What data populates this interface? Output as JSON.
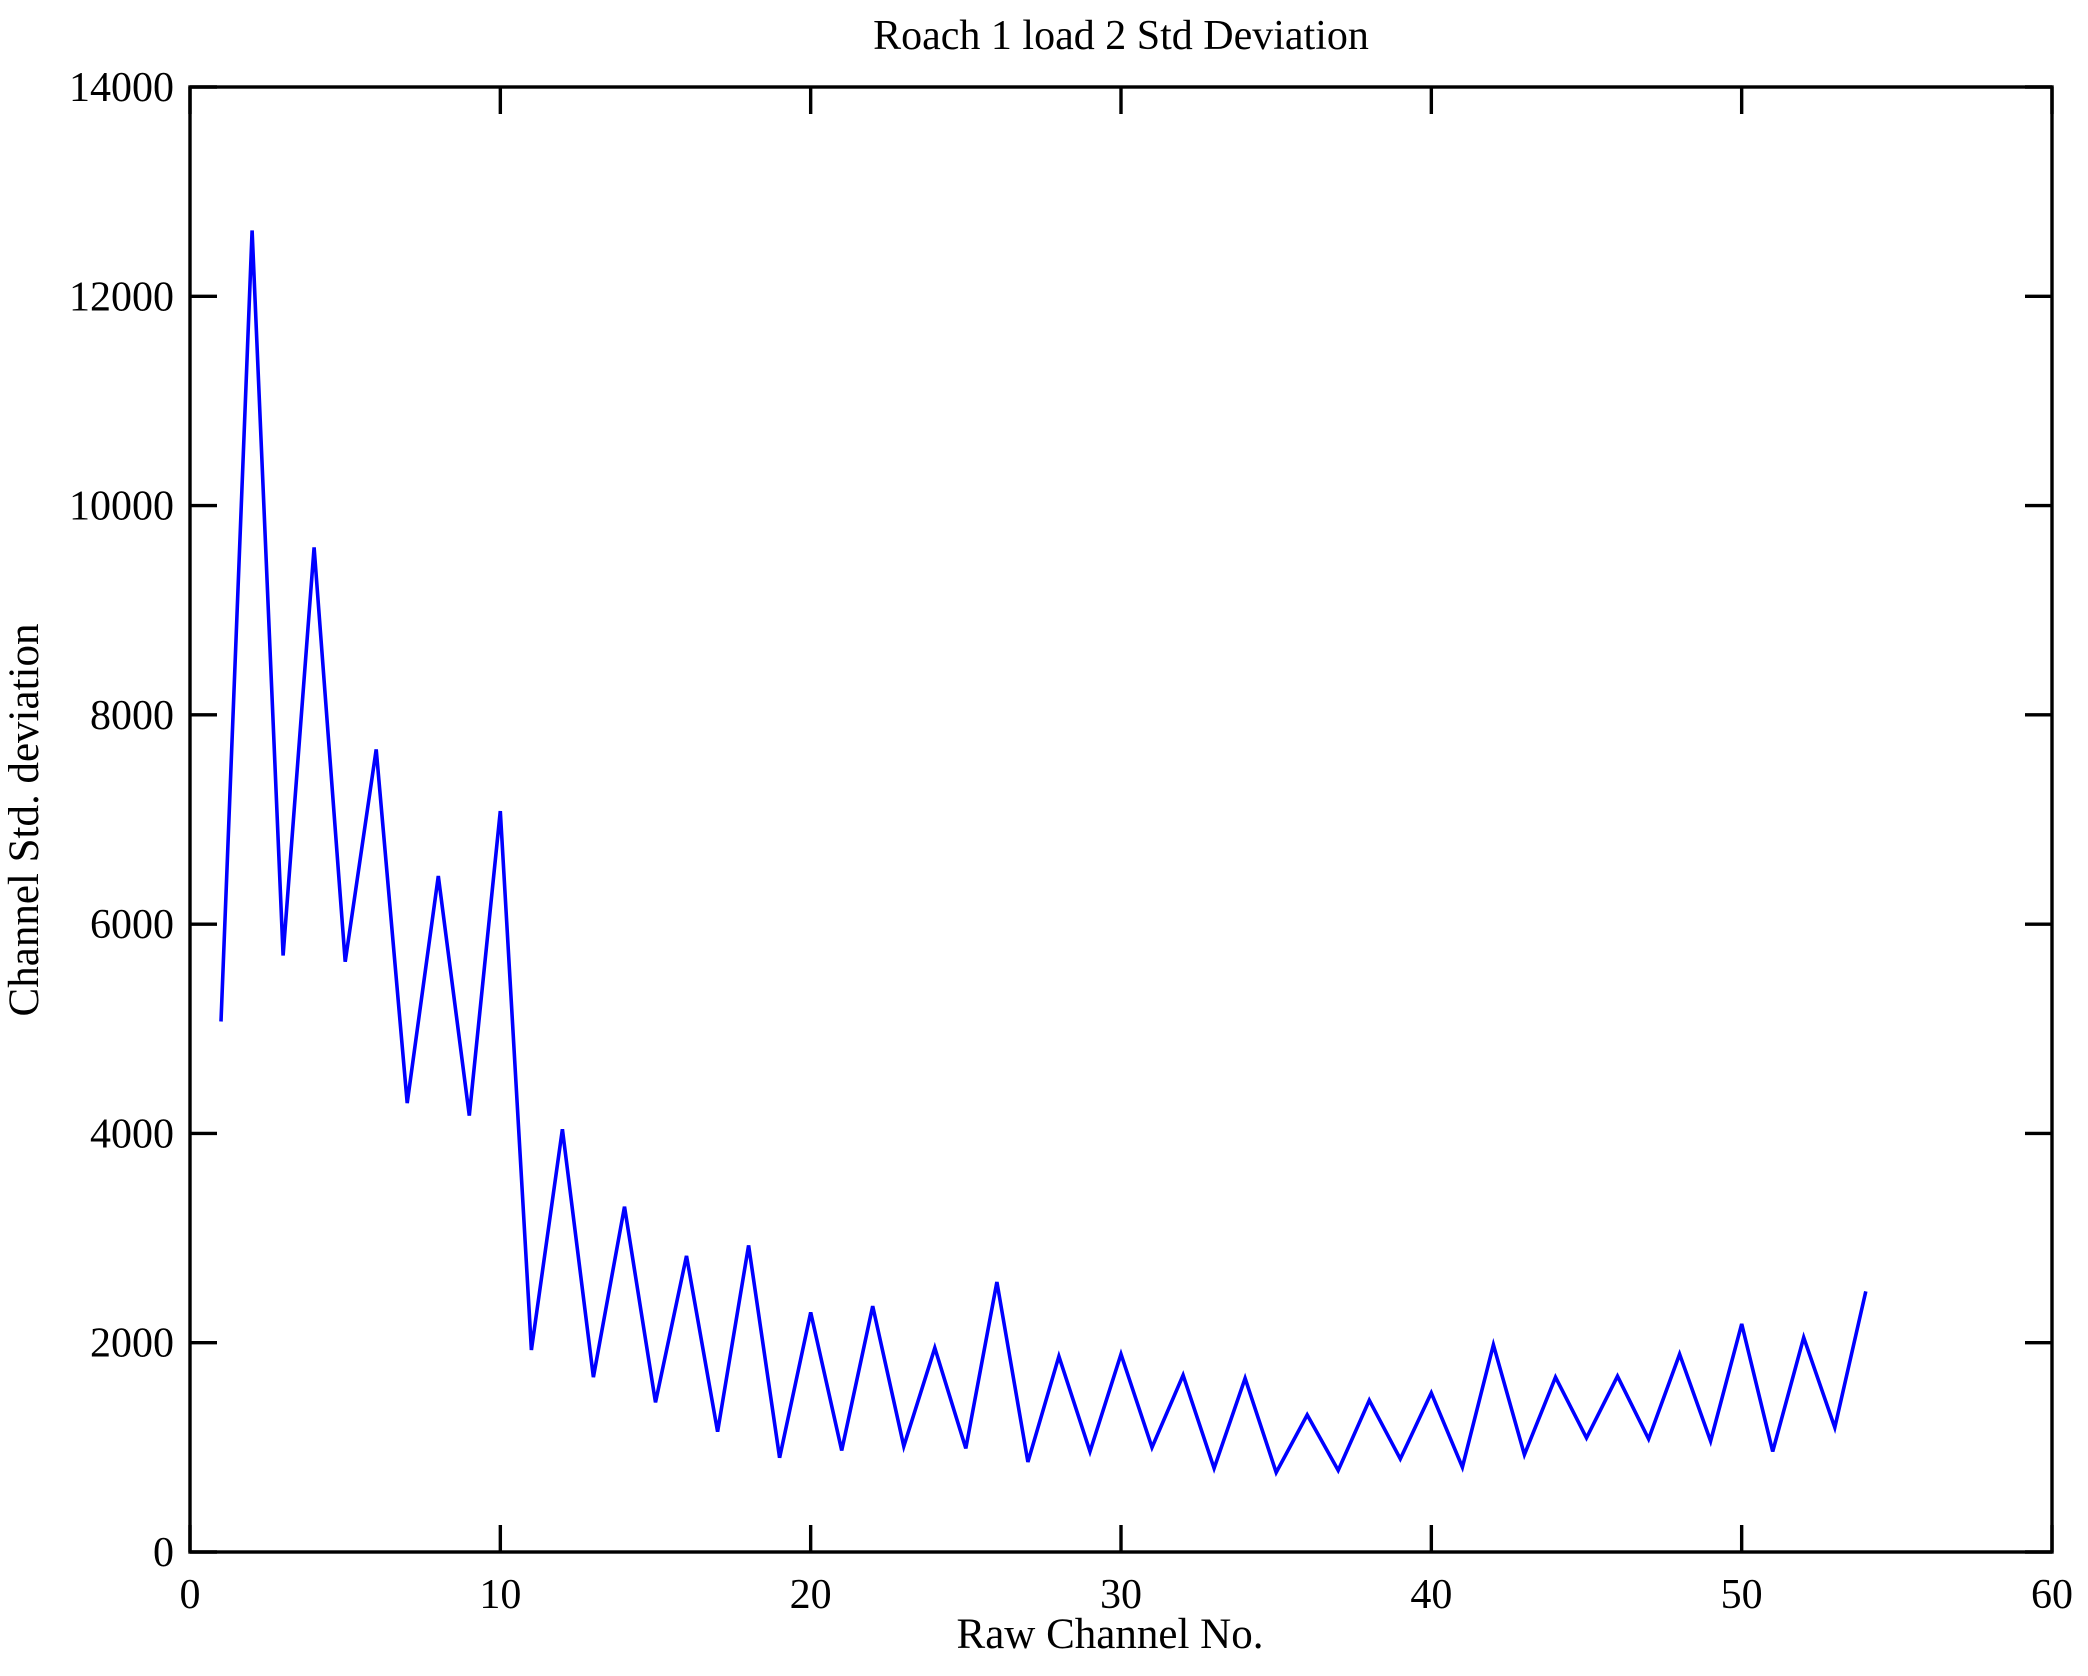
{
  "figure": {
    "background": "#ffffff",
    "axis_color": "#000000"
  },
  "chart_data": {
    "type": "line",
    "title": "Roach 1 load 2 Std Deviation",
    "xlabel": "Raw Channel No.",
    "ylabel": "Channel Std. deviation",
    "xlim": [
      0,
      60
    ],
    "ylim": [
      0,
      14000
    ],
    "xticks": [
      0,
      10,
      20,
      30,
      40,
      50,
      60
    ],
    "yticks": [
      0,
      2000,
      4000,
      6000,
      8000,
      10000,
      12000,
      14000
    ],
    "grid": false,
    "legend_position": "none",
    "line_color": "#0000ff",
    "series_name": "Channel Std. deviation",
    "x": [
      1,
      2,
      3,
      4,
      5,
      6,
      7,
      8,
      9,
      10,
      11,
      12,
      13,
      14,
      15,
      16,
      17,
      18,
      19,
      20,
      21,
      22,
      23,
      24,
      25,
      26,
      27,
      28,
      29,
      30,
      31,
      32,
      33,
      34,
      35,
      36,
      37,
      38,
      39,
      40,
      41,
      42,
      43,
      44,
      45,
      46,
      47,
      48,
      49,
      50,
      51,
      52,
      53,
      54
    ],
    "y": [
      5070,
      12630,
      5700,
      9600,
      5640,
      7670,
      4290,
      6460,
      4170,
      7080,
      1930,
      4040,
      1670,
      3300,
      1430,
      2830,
      1150,
      2930,
      900,
      2290,
      970,
      2350,
      1010,
      1950,
      990,
      2580,
      860,
      1870,
      960,
      1890,
      1000,
      1690,
      800,
      1660,
      760,
      1310,
      780,
      1450,
      890,
      1520,
      810,
      1980,
      930,
      1670,
      1090,
      1680,
      1080,
      1890,
      1060,
      2180,
      960,
      2050,
      1190,
      2490
    ]
  }
}
